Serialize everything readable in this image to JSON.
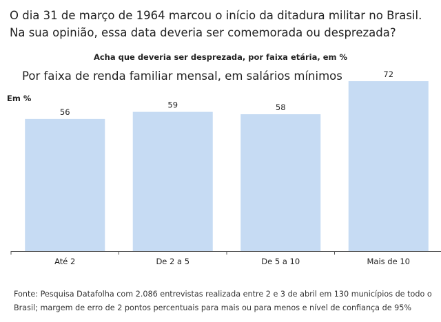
{
  "question": "O dia 31 de março de 1964 marcou o início da ditadura militar no Brasil. Na sua opinião, essa data deveria ser comemorada ou desprezada?",
  "subtitle": "Acha que deveria ser desprezada, por faixa etária, em %",
  "group_title": "Por faixa de renda familiar mensal, em salários mínimos",
  "unit_label": "Em %",
  "footnote": "Fonte: Pesquisa Datafolha com 2.086 entrevistas realizada entre 2 e 3 de abril em 130 municípios de todo o Brasil; margem de erro de 2 pontos percentuais para mais ou para menos e nível de confiança de 95%",
  "colors": {
    "bar": "#c6dbf3",
    "axis": "#555555",
    "text": "#222222"
  },
  "chart_data": {
    "type": "bar",
    "title": "Por faixa de renda familiar mensal, em salários mínimos",
    "ylabel": "Em %",
    "categories": [
      "Até 2",
      "De 2 a 5",
      "De 5 a 10",
      "Mais de 10"
    ],
    "values": [
      56,
      59,
      58,
      72
    ],
    "ylim": [
      0,
      72
    ],
    "grid": false,
    "data_labels": true
  }
}
